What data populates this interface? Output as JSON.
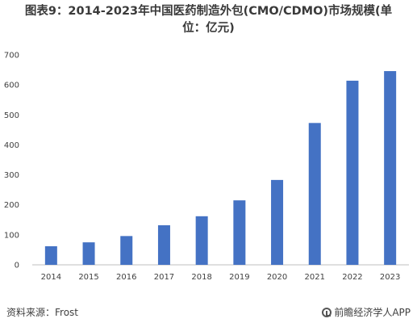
{
  "title_line1": "图表9：2014-2023年中国医药制造外包(CMO/CDMO)市场规模(单",
  "title_line2": "位：亿元)",
  "source": "资料来源：Frost",
  "brand": "前瞻经济学人APP",
  "chart_data": {
    "type": "bar",
    "title": "图表9：2014-2023年中国医药制造外包(CMO/CDMO)市场规模(单位：亿元)",
    "categories": [
      "2014",
      "2015",
      "2016",
      "2017",
      "2018",
      "2019",
      "2020",
      "2021",
      "2022",
      "2023"
    ],
    "values": [
      62,
      75,
      96,
      132,
      162,
      215,
      283,
      473,
      614,
      646
    ],
    "ylim": [
      0,
      700
    ],
    "yticks": [
      0,
      100,
      200,
      300,
      400,
      500,
      600,
      700
    ],
    "ytick_labels": [
      "0",
      "100",
      "200",
      "300",
      "400",
      "500",
      "600",
      "700"
    ],
    "bar_color": "#4472c4",
    "grid": false,
    "xlabel": "",
    "ylabel": ""
  }
}
